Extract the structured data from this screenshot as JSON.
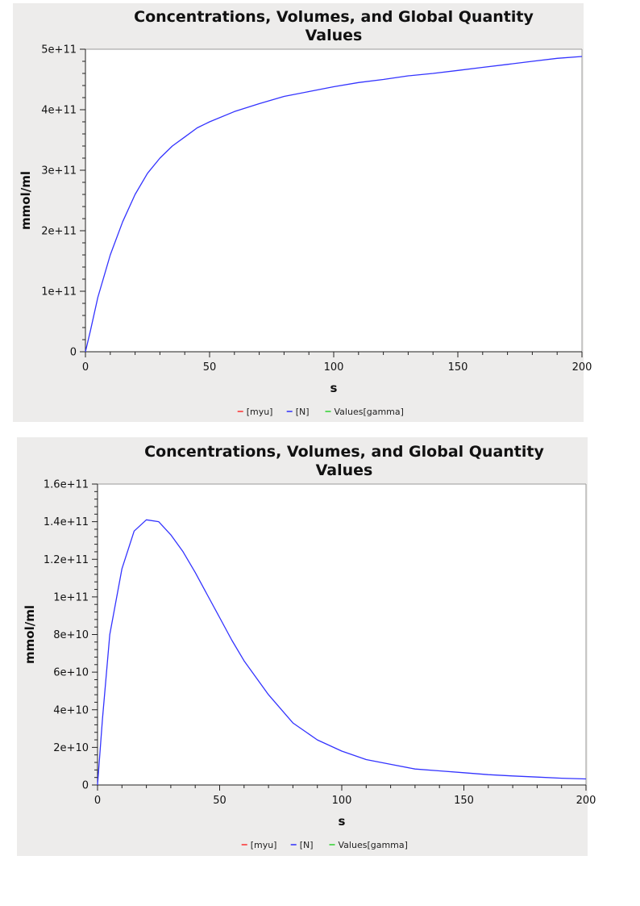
{
  "chart_data": [
    {
      "type": "line",
      "title": "Concentrations, Volumes, and Global Quantity Values",
      "xlabel": "s",
      "ylabel": "mmol/ml",
      "xlim": [
        0,
        200
      ],
      "ylim": [
        0,
        500000000000.0
      ],
      "x_ticks": [
        0,
        50,
        100,
        150,
        200
      ],
      "x_tick_labels": [
        "0",
        "50",
        "100",
        "150",
        "200"
      ],
      "y_ticks": [
        0,
        100000000000.0,
        200000000000.0,
        300000000000.0,
        400000000000.0,
        500000000000.0
      ],
      "y_tick_labels": [
        "0",
        "1e+11",
        "2e+11",
        "3e+11",
        "4e+11",
        "5e+11"
      ],
      "legend": [
        {
          "label": "[myu]",
          "color": "#ff0000"
        },
        {
          "label": "[N]",
          "color": "#0000ff"
        },
        {
          "label": "Values[gamma]",
          "color": "#00cc00"
        }
      ],
      "legend_position": "bottom",
      "series": [
        {
          "name": "[N]",
          "color": "#3333ff",
          "x": [
            0,
            2,
            5,
            10,
            15,
            20,
            25,
            30,
            35,
            40,
            45,
            50,
            60,
            70,
            80,
            90,
            100,
            110,
            120,
            130,
            140,
            150,
            160,
            170,
            180,
            190,
            200
          ],
          "y": [
            0,
            35000000000.0,
            90000000000.0,
            160000000000.0,
            215000000000.0,
            260000000000.0,
            295000000000.0,
            320000000000.0,
            340000000000.0,
            355000000000.0,
            370000000000.0,
            380000000000.0,
            397000000000.0,
            410000000000.0,
            422000000000.0,
            430000000000.0,
            438000000000.0,
            445000000000.0,
            450000000000.0,
            456000000000.0,
            460000000000.0,
            465000000000.0,
            470000000000.0,
            475000000000.0,
            480000000000.0,
            485000000000.0,
            488000000000.0
          ]
        }
      ]
    },
    {
      "type": "line",
      "title": "Concentrations, Volumes, and Global Quantity Values",
      "xlabel": "s",
      "ylabel": "mmol/ml",
      "xlim": [
        0,
        200
      ],
      "ylim": [
        0,
        160000000000.0
      ],
      "x_ticks": [
        0,
        50,
        100,
        150,
        200
      ],
      "x_tick_labels": [
        "0",
        "50",
        "100",
        "150",
        "200"
      ],
      "y_ticks": [
        0,
        20000000000.0,
        40000000000.0,
        60000000000.0,
        80000000000.0,
        100000000000.0,
        120000000000.0,
        140000000000.0,
        160000000000.0
      ],
      "y_tick_labels": [
        "0",
        "2e+10",
        "4e+10",
        "6e+10",
        "8e+10",
        "1e+11",
        "1.2e+11",
        "1.4e+11",
        "1.6e+11"
      ],
      "legend": [
        {
          "label": "[myu]",
          "color": "#ff0000"
        },
        {
          "label": "[N]",
          "color": "#0000ff"
        },
        {
          "label": "Values[gamma]",
          "color": "#00cc00"
        }
      ],
      "legend_position": "bottom",
      "series": [
        {
          "name": "[N]",
          "color": "#3333ff",
          "x": [
            0,
            2,
            5,
            10,
            15,
            20,
            25,
            30,
            35,
            40,
            45,
            50,
            55,
            60,
            70,
            80,
            90,
            100,
            110,
            120,
            130,
            140,
            150,
            160,
            170,
            180,
            190,
            200
          ],
          "y": [
            0,
            35000000000.0,
            80000000000.0,
            115000000000.0,
            135000000000.0,
            141000000000.0,
            140000000000.0,
            133000000000.0,
            124000000000.0,
            113000000000.0,
            101000000000.0,
            89000000000.0,
            77000000000.0,
            66000000000.0,
            48000000000.0,
            33000000000.0,
            24000000000.0,
            18000000000.0,
            13500000000.0,
            11000000000.0,
            8500000000.0,
            7500000000.0,
            6500000000.0,
            5500000000.0,
            4800000000.0,
            4200000000.0,
            3600000000.0,
            3200000000.0
          ]
        }
      ]
    }
  ]
}
